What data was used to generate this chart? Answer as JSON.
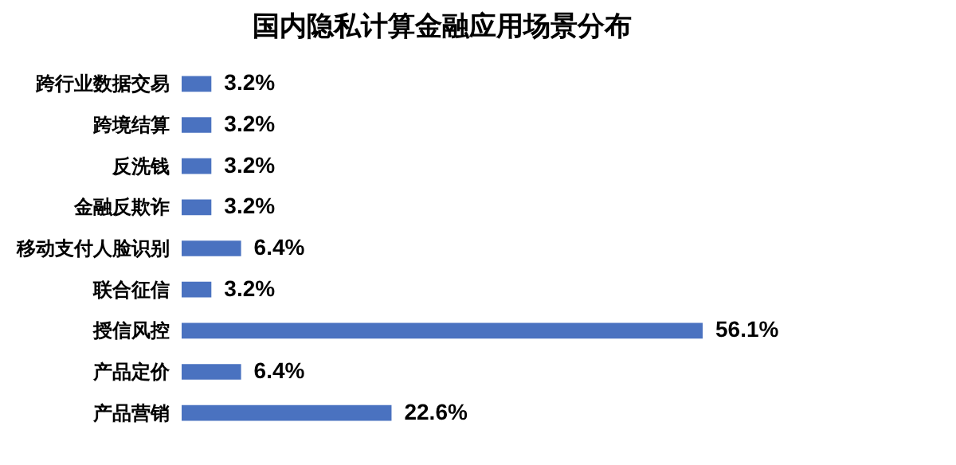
{
  "chart_data": {
    "type": "bar",
    "orientation": "horizontal",
    "title": "国内隐私计算金融应用场景分布",
    "categories": [
      "跨行业数据交易",
      "跨境结算",
      "反洗钱",
      "金融反欺诈",
      "移动支付人脸识别",
      "联合征信",
      "授信风控",
      "产品定价",
      "产品营销"
    ],
    "values": [
      3.2,
      3.2,
      3.2,
      3.2,
      6.4,
      3.2,
      56.1,
      6.4,
      22.6
    ],
    "value_labels": [
      "3.2%",
      "3.2%",
      "3.2%",
      "3.2%",
      "6.4%",
      "3.2%",
      "56.1%",
      "6.4%",
      "22.6%"
    ],
    "color": "#4a72c0",
    "tick_labels": "y"
  }
}
